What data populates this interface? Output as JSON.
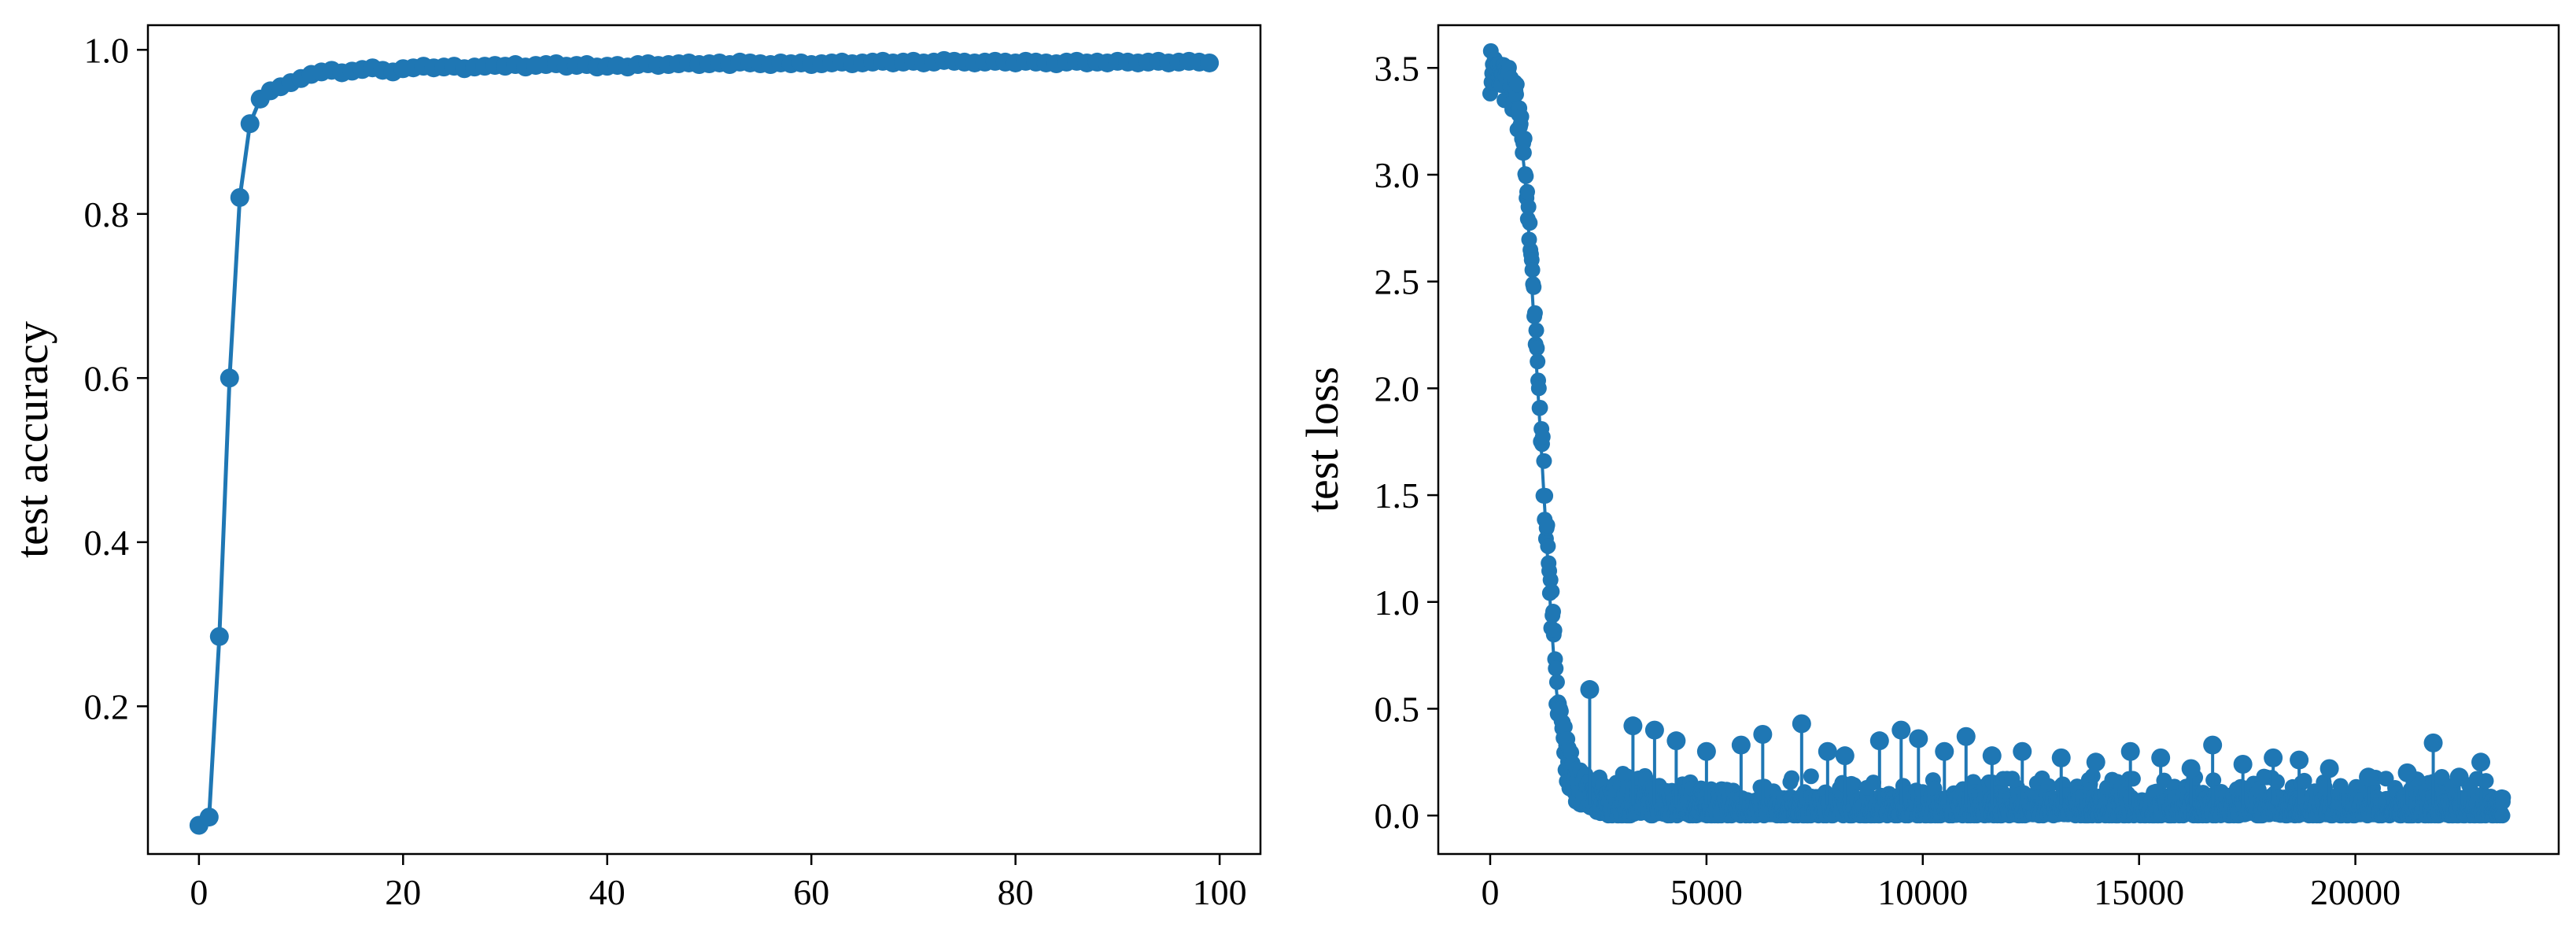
{
  "chart_data": [
    {
      "type": "line",
      "ylabel": "test accuracy",
      "xlabel": "",
      "xlim": [
        -5,
        104
      ],
      "ylim": [
        0.02,
        1.03
      ],
      "xticks": [
        0,
        20,
        40,
        60,
        80,
        100
      ],
      "yticks": [
        0.2,
        0.4,
        0.6,
        0.8,
        1.0
      ],
      "ytick_labels": [
        "0.2",
        "0.4",
        "0.6",
        "0.8",
        "1.0"
      ],
      "grid": false,
      "color": "#1f77b4",
      "series": [
        {
          "x": [
            0,
            1,
            2,
            3,
            4,
            5,
            6,
            7,
            8,
            9,
            10,
            11,
            12,
            13,
            14,
            15,
            16,
            17,
            18,
            19,
            20,
            21,
            22,
            23,
            24,
            25,
            26,
            27,
            28,
            29,
            30,
            31,
            32,
            33,
            34,
            35,
            36,
            37,
            38,
            39,
            40,
            41,
            42,
            43,
            44,
            45,
            46,
            47,
            48,
            49,
            50,
            51,
            52,
            53,
            54,
            55,
            56,
            57,
            58,
            59,
            60,
            61,
            62,
            63,
            64,
            65,
            66,
            67,
            68,
            69,
            70,
            71,
            72,
            73,
            74,
            75,
            76,
            77,
            78,
            79,
            80,
            81,
            82,
            83,
            84,
            85,
            86,
            87,
            88,
            89,
            90,
            91,
            92,
            93,
            94,
            95,
            96,
            97,
            98,
            99
          ],
          "y": [
            0.055,
            0.065,
            0.285,
            0.6,
            0.82,
            0.91,
            0.94,
            0.95,
            0.955,
            0.96,
            0.965,
            0.97,
            0.973,
            0.975,
            0.972,
            0.974,
            0.976,
            0.978,
            0.975,
            0.973,
            0.977,
            0.978,
            0.98,
            0.978,
            0.979,
            0.98,
            0.977,
            0.979,
            0.98,
            0.981,
            0.98,
            0.982,
            0.979,
            0.981,
            0.982,
            0.983,
            0.98,
            0.981,
            0.982,
            0.979,
            0.98,
            0.981,
            0.979,
            0.982,
            0.983,
            0.981,
            0.982,
            0.983,
            0.984,
            0.982,
            0.983,
            0.984,
            0.982,
            0.985,
            0.984,
            0.983,
            0.982,
            0.984,
            0.983,
            0.984,
            0.982,
            0.983,
            0.984,
            0.985,
            0.983,
            0.984,
            0.985,
            0.986,
            0.984,
            0.985,
            0.986,
            0.984,
            0.985,
            0.987,
            0.986,
            0.985,
            0.984,
            0.985,
            0.986,
            0.985,
            0.984,
            0.986,
            0.985,
            0.984,
            0.983,
            0.985,
            0.986,
            0.984,
            0.985,
            0.984,
            0.986,
            0.985,
            0.984,
            0.985,
            0.986,
            0.984,
            0.985,
            0.986,
            0.985,
            0.984
          ]
        }
      ]
    },
    {
      "type": "line",
      "ylabel": "test loss",
      "xlabel": "",
      "xlim": [
        -1200,
        24700
      ],
      "ylim": [
        -0.18,
        3.7
      ],
      "xticks": [
        0,
        5000,
        10000,
        15000,
        20000
      ],
      "yticks": [
        0.0,
        0.5,
        1.0,
        1.5,
        2.0,
        2.5,
        3.0,
        3.5
      ],
      "ytick_labels": [
        "0.0",
        "0.5",
        "1.0",
        "1.5",
        "2.0",
        "2.5",
        "3.0",
        "3.5"
      ],
      "grid": false,
      "color": "#1f77b4",
      "x_max": 23400,
      "decay_curve": {
        "x": [
          0,
          200,
          400,
          500,
          600,
          700,
          800,
          900,
          1000,
          1100,
          1200,
          1300,
          1400,
          1500,
          1600,
          1700,
          1800,
          2000,
          2200,
          2500,
          3000,
          3500,
          4000,
          5000
        ],
        "y": [
          3.45,
          3.42,
          3.38,
          3.35,
          3.3,
          3.2,
          3.0,
          2.7,
          2.35,
          2.0,
          1.65,
          1.3,
          0.95,
          0.65,
          0.45,
          0.3,
          0.2,
          0.11,
          0.07,
          0.04,
          0.02,
          0.012,
          0.008,
          0.005
        ]
      },
      "spikes": [
        {
          "x": 2300,
          "y": 0.59
        },
        {
          "x": 3300,
          "y": 0.42
        },
        {
          "x": 3800,
          "y": 0.4
        },
        {
          "x": 4300,
          "y": 0.35
        },
        {
          "x": 5000,
          "y": 0.3
        },
        {
          "x": 5800,
          "y": 0.33
        },
        {
          "x": 6300,
          "y": 0.38
        },
        {
          "x": 7200,
          "y": 0.43
        },
        {
          "x": 7800,
          "y": 0.3
        },
        {
          "x": 8200,
          "y": 0.28
        },
        {
          "x": 9000,
          "y": 0.35
        },
        {
          "x": 9500,
          "y": 0.4
        },
        {
          "x": 9900,
          "y": 0.36
        },
        {
          "x": 10500,
          "y": 0.3
        },
        {
          "x": 11000,
          "y": 0.37
        },
        {
          "x": 11600,
          "y": 0.28
        },
        {
          "x": 12300,
          "y": 0.3
        },
        {
          "x": 13200,
          "y": 0.27
        },
        {
          "x": 14000,
          "y": 0.25
        },
        {
          "x": 14800,
          "y": 0.3
        },
        {
          "x": 15500,
          "y": 0.27
        },
        {
          "x": 16200,
          "y": 0.22
        },
        {
          "x": 16700,
          "y": 0.33
        },
        {
          "x": 17400,
          "y": 0.24
        },
        {
          "x": 18100,
          "y": 0.27
        },
        {
          "x": 18700,
          "y": 0.26
        },
        {
          "x": 19400,
          "y": 0.22
        },
        {
          "x": 20300,
          "y": 0.18
        },
        {
          "x": 21200,
          "y": 0.2
        },
        {
          "x": 21800,
          "y": 0.34
        },
        {
          "x": 22400,
          "y": 0.18
        },
        {
          "x": 22900,
          "y": 0.25
        }
      ]
    }
  ]
}
